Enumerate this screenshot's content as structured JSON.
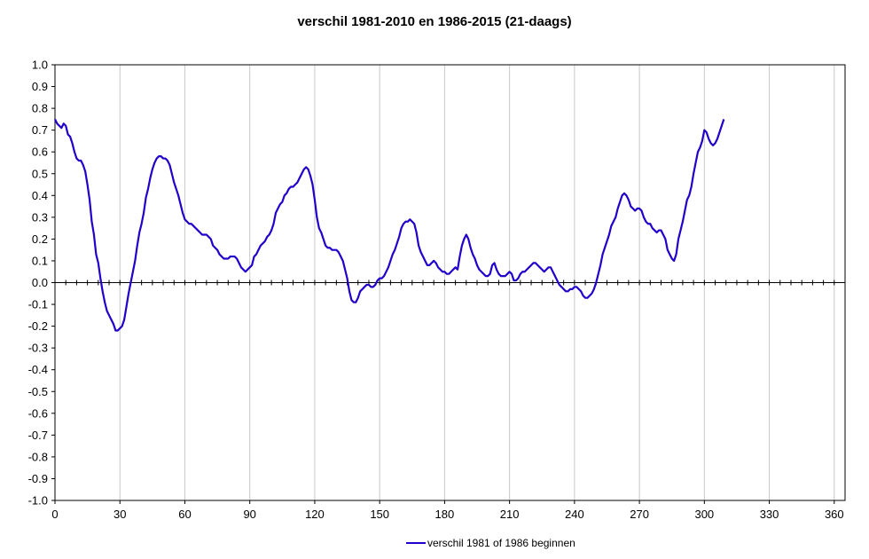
{
  "chart_data": {
    "type": "line",
    "title": "verschil 1981-2010 en 1986-2015 (21-daags)",
    "xlabel": "",
    "ylabel": "",
    "xlim": [
      0,
      365
    ],
    "ylim": [
      -1.0,
      1.0
    ],
    "x_ticks": [
      0,
      30,
      60,
      90,
      120,
      150,
      180,
      210,
      240,
      270,
      300,
      330,
      360
    ],
    "y_ticks": [
      1.0,
      0.9,
      0.8,
      0.7,
      0.6,
      0.5,
      0.4,
      0.3,
      0.2,
      0.1,
      0.0,
      -0.1,
      -0.2,
      -0.3,
      -0.4,
      -0.5,
      -0.6,
      -0.7,
      -0.8,
      -0.9,
      -1.0
    ],
    "y_tick_labels": [
      "1.0",
      "0.9",
      "0.8",
      "0.7",
      "0.6",
      "0.5",
      "0.4",
      "0.3",
      "0.2",
      "0.1",
      "0.0",
      "-0.1",
      "-0.2",
      "-0.3",
      "-0.4",
      "-0.5",
      "-0.6",
      "-0.7",
      "-0.8",
      "-0.9",
      "-1.0"
    ],
    "grid": "vertical",
    "legend_position": "bottom-center",
    "series": [
      {
        "name": "verschil 1981 of 1986 beginnen",
        "color": "#2200cc",
        "points": [
          [
            0,
            0.75
          ],
          [
            1,
            0.73
          ],
          [
            2,
            0.72
          ],
          [
            3,
            0.71
          ],
          [
            4,
            0.73
          ],
          [
            5,
            0.72
          ],
          [
            6,
            0.68
          ],
          [
            7,
            0.67
          ],
          [
            8,
            0.64
          ],
          [
            9,
            0.6
          ],
          [
            10,
            0.57
          ],
          [
            11,
            0.56
          ],
          [
            12,
            0.56
          ],
          [
            13,
            0.54
          ],
          [
            14,
            0.51
          ],
          [
            15,
            0.45
          ],
          [
            16,
            0.38
          ],
          [
            17,
            0.28
          ],
          [
            18,
            0.22
          ],
          [
            19,
            0.13
          ],
          [
            20,
            0.09
          ],
          [
            21,
            0.02
          ],
          [
            22,
            -0.04
          ],
          [
            23,
            -0.09
          ],
          [
            24,
            -0.13
          ],
          [
            25,
            -0.15
          ],
          [
            26,
            -0.17
          ],
          [
            27,
            -0.19
          ],
          [
            28,
            -0.22
          ],
          [
            29,
            -0.22
          ],
          [
            30,
            -0.21
          ],
          [
            31,
            -0.2
          ],
          [
            32,
            -0.17
          ],
          [
            33,
            -0.11
          ],
          [
            34,
            -0.05
          ],
          [
            35,
            0.0
          ],
          [
            36,
            0.05
          ],
          [
            37,
            0.1
          ],
          [
            38,
            0.17
          ],
          [
            39,
            0.23
          ],
          [
            40,
            0.27
          ],
          [
            41,
            0.32
          ],
          [
            42,
            0.39
          ],
          [
            43,
            0.43
          ],
          [
            44,
            0.48
          ],
          [
            45,
            0.52
          ],
          [
            46,
            0.55
          ],
          [
            47,
            0.57
          ],
          [
            48,
            0.58
          ],
          [
            49,
            0.58
          ],
          [
            50,
            0.57
          ],
          [
            51,
            0.57
          ],
          [
            52,
            0.56
          ],
          [
            53,
            0.54
          ],
          [
            54,
            0.5
          ],
          [
            55,
            0.46
          ],
          [
            56,
            0.43
          ],
          [
            57,
            0.4
          ],
          [
            58,
            0.36
          ],
          [
            59,
            0.32
          ],
          [
            60,
            0.29
          ],
          [
            61,
            0.28
          ],
          [
            62,
            0.27
          ],
          [
            63,
            0.27
          ],
          [
            64,
            0.26
          ],
          [
            65,
            0.25
          ],
          [
            66,
            0.24
          ],
          [
            67,
            0.23
          ],
          [
            68,
            0.22
          ],
          [
            69,
            0.22
          ],
          [
            70,
            0.22
          ],
          [
            71,
            0.21
          ],
          [
            72,
            0.2
          ],
          [
            73,
            0.17
          ],
          [
            74,
            0.16
          ],
          [
            75,
            0.15
          ],
          [
            76,
            0.13
          ],
          [
            77,
            0.12
          ],
          [
            78,
            0.11
          ],
          [
            79,
            0.11
          ],
          [
            80,
            0.11
          ],
          [
            81,
            0.12
          ],
          [
            82,
            0.12
          ],
          [
            83,
            0.12
          ],
          [
            84,
            0.11
          ],
          [
            85,
            0.09
          ],
          [
            86,
            0.07
          ],
          [
            87,
            0.06
          ],
          [
            88,
            0.05
          ],
          [
            89,
            0.06
          ],
          [
            90,
            0.07
          ],
          [
            91,
            0.08
          ],
          [
            92,
            0.12
          ],
          [
            93,
            0.13
          ],
          [
            94,
            0.15
          ],
          [
            95,
            0.17
          ],
          [
            96,
            0.18
          ],
          [
            97,
            0.19
          ],
          [
            98,
            0.21
          ],
          [
            99,
            0.22
          ],
          [
            100,
            0.24
          ],
          [
            101,
            0.27
          ],
          [
            102,
            0.32
          ],
          [
            103,
            0.34
          ],
          [
            104,
            0.36
          ],
          [
            105,
            0.37
          ],
          [
            106,
            0.4
          ],
          [
            107,
            0.41
          ],
          [
            108,
            0.43
          ],
          [
            109,
            0.44
          ],
          [
            110,
            0.44
          ],
          [
            111,
            0.45
          ],
          [
            112,
            0.46
          ],
          [
            113,
            0.48
          ],
          [
            114,
            0.5
          ],
          [
            115,
            0.52
          ],
          [
            116,
            0.53
          ],
          [
            117,
            0.52
          ],
          [
            118,
            0.49
          ],
          [
            119,
            0.45
          ],
          [
            120,
            0.38
          ],
          [
            121,
            0.3
          ],
          [
            122,
            0.25
          ],
          [
            123,
            0.23
          ],
          [
            124,
            0.2
          ],
          [
            125,
            0.17
          ],
          [
            126,
            0.16
          ],
          [
            127,
            0.16
          ],
          [
            128,
            0.15
          ],
          [
            129,
            0.15
          ],
          [
            130,
            0.15
          ],
          [
            131,
            0.14
          ],
          [
            132,
            0.12
          ],
          [
            133,
            0.1
          ],
          [
            134,
            0.06
          ],
          [
            135,
            0.02
          ],
          [
            136,
            -0.04
          ],
          [
            137,
            -0.08
          ],
          [
            138,
            -0.09
          ],
          [
            139,
            -0.09
          ],
          [
            140,
            -0.07
          ],
          [
            141,
            -0.04
          ],
          [
            142,
            -0.03
          ],
          [
            143,
            -0.02
          ],
          [
            144,
            -0.01
          ],
          [
            145,
            -0.01
          ],
          [
            146,
            -0.02
          ],
          [
            147,
            -0.02
          ],
          [
            148,
            -0.01
          ],
          [
            149,
            0.01
          ],
          [
            150,
            0.02
          ],
          [
            151,
            0.02
          ],
          [
            152,
            0.03
          ],
          [
            153,
            0.05
          ],
          [
            154,
            0.07
          ],
          [
            155,
            0.1
          ],
          [
            156,
            0.13
          ],
          [
            157,
            0.15
          ],
          [
            158,
            0.18
          ],
          [
            159,
            0.21
          ],
          [
            160,
            0.25
          ],
          [
            161,
            0.27
          ],
          [
            162,
            0.28
          ],
          [
            163,
            0.28
          ],
          [
            164,
            0.29
          ],
          [
            165,
            0.28
          ],
          [
            166,
            0.27
          ],
          [
            167,
            0.23
          ],
          [
            168,
            0.17
          ],
          [
            169,
            0.14
          ],
          [
            170,
            0.12
          ],
          [
            171,
            0.1
          ],
          [
            172,
            0.08
          ],
          [
            173,
            0.08
          ],
          [
            174,
            0.09
          ],
          [
            175,
            0.1
          ],
          [
            176,
            0.09
          ],
          [
            177,
            0.07
          ],
          [
            178,
            0.06
          ],
          [
            179,
            0.05
          ],
          [
            180,
            0.05
          ],
          [
            181,
            0.04
          ],
          [
            182,
            0.04
          ],
          [
            183,
            0.05
          ],
          [
            184,
            0.06
          ],
          [
            185,
            0.07
          ],
          [
            186,
            0.06
          ],
          [
            187,
            0.12
          ],
          [
            188,
            0.17
          ],
          [
            189,
            0.2
          ],
          [
            190,
            0.22
          ],
          [
            191,
            0.2
          ],
          [
            192,
            0.16
          ],
          [
            193,
            0.13
          ],
          [
            194,
            0.11
          ],
          [
            195,
            0.08
          ],
          [
            196,
            0.06
          ],
          [
            197,
            0.05
          ],
          [
            198,
            0.04
          ],
          [
            199,
            0.03
          ],
          [
            200,
            0.03
          ],
          [
            201,
            0.04
          ],
          [
            202,
            0.08
          ],
          [
            203,
            0.09
          ],
          [
            204,
            0.06
          ],
          [
            205,
            0.04
          ],
          [
            206,
            0.03
          ],
          [
            207,
            0.03
          ],
          [
            208,
            0.03
          ],
          [
            209,
            0.04
          ],
          [
            210,
            0.05
          ],
          [
            211,
            0.04
          ],
          [
            212,
            0.01
          ],
          [
            213,
            0.01
          ],
          [
            214,
            0.02
          ],
          [
            215,
            0.04
          ],
          [
            216,
            0.05
          ],
          [
            217,
            0.05
          ],
          [
            218,
            0.06
          ],
          [
            219,
            0.07
          ],
          [
            220,
            0.08
          ],
          [
            221,
            0.09
          ],
          [
            222,
            0.09
          ],
          [
            223,
            0.08
          ],
          [
            224,
            0.07
          ],
          [
            225,
            0.06
          ],
          [
            226,
            0.05
          ],
          [
            227,
            0.06
          ],
          [
            228,
            0.07
          ],
          [
            229,
            0.07
          ],
          [
            230,
            0.05
          ],
          [
            231,
            0.03
          ],
          [
            232,
            0.01
          ],
          [
            233,
            -0.01
          ],
          [
            234,
            -0.02
          ],
          [
            235,
            -0.03
          ],
          [
            236,
            -0.04
          ],
          [
            237,
            -0.04
          ],
          [
            238,
            -0.03
          ],
          [
            239,
            -0.03
          ],
          [
            240,
            -0.02
          ],
          [
            241,
            -0.02
          ],
          [
            242,
            -0.03
          ],
          [
            243,
            -0.04
          ],
          [
            244,
            -0.06
          ],
          [
            245,
            -0.07
          ],
          [
            246,
            -0.07
          ],
          [
            247,
            -0.06
          ],
          [
            248,
            -0.05
          ],
          [
            249,
            -0.03
          ],
          [
            250,
            0.0
          ],
          [
            251,
            0.04
          ],
          [
            252,
            0.08
          ],
          [
            253,
            0.13
          ],
          [
            254,
            0.16
          ],
          [
            255,
            0.19
          ],
          [
            256,
            0.22
          ],
          [
            257,
            0.26
          ],
          [
            258,
            0.28
          ],
          [
            259,
            0.3
          ],
          [
            260,
            0.34
          ],
          [
            261,
            0.37
          ],
          [
            262,
            0.4
          ],
          [
            263,
            0.41
          ],
          [
            264,
            0.4
          ],
          [
            265,
            0.38
          ],
          [
            266,
            0.35
          ],
          [
            267,
            0.34
          ],
          [
            268,
            0.33
          ],
          [
            269,
            0.34
          ],
          [
            270,
            0.34
          ],
          [
            271,
            0.33
          ],
          [
            272,
            0.3
          ],
          [
            273,
            0.28
          ],
          [
            274,
            0.27
          ],
          [
            275,
            0.27
          ],
          [
            276,
            0.25
          ],
          [
            277,
            0.24
          ],
          [
            278,
            0.23
          ],
          [
            279,
            0.24
          ],
          [
            280,
            0.24
          ],
          [
            281,
            0.22
          ],
          [
            282,
            0.2
          ],
          [
            283,
            0.15
          ],
          [
            284,
            0.13
          ],
          [
            285,
            0.11
          ],
          [
            286,
            0.1
          ],
          [
            287,
            0.13
          ],
          [
            288,
            0.2
          ],
          [
            289,
            0.24
          ],
          [
            290,
            0.28
          ],
          [
            291,
            0.33
          ],
          [
            292,
            0.38
          ],
          [
            293,
            0.4
          ],
          [
            294,
            0.44
          ],
          [
            295,
            0.5
          ],
          [
            296,
            0.55
          ],
          [
            297,
            0.6
          ],
          [
            298,
            0.62
          ],
          [
            299,
            0.65
          ],
          [
            300,
            0.7
          ],
          [
            301,
            0.69
          ],
          [
            302,
            0.66
          ],
          [
            303,
            0.64
          ],
          [
            304,
            0.63
          ],
          [
            305,
            0.64
          ],
          [
            306,
            0.66
          ],
          [
            307,
            0.69
          ],
          [
            308,
            0.72
          ],
          [
            309,
            0.75
          ]
        ]
      }
    ]
  }
}
